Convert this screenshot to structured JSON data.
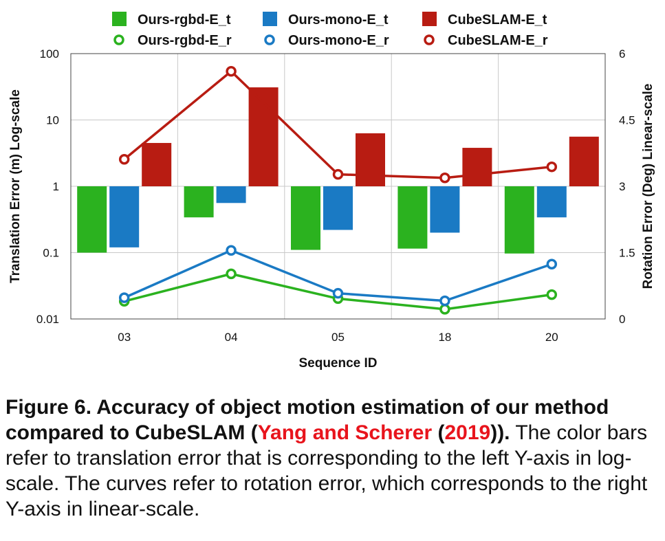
{
  "chart_data": {
    "type": "bar+line",
    "categories": [
      "03",
      "04",
      "05",
      "18",
      "20"
    ],
    "xlabel": "Sequence ID",
    "ylabel_left": "Translation Error (m) Log-scale",
    "ylabel_right": "Rotation Error (Deg) Linear-scale",
    "left_axis": {
      "scale": "log",
      "ylim": [
        0.01,
        100
      ],
      "ticks": [
        "0.01",
        "0.1",
        "1",
        "10",
        "100"
      ],
      "tick_values": [
        0.01,
        0.1,
        1,
        10,
        100
      ]
    },
    "right_axis": {
      "scale": "linear",
      "ylim": [
        0,
        6
      ],
      "ticks": [
        "0",
        "1.5",
        "3",
        "4.5",
        "6"
      ],
      "tick_values": [
        0,
        1.5,
        3,
        4.5,
        6
      ]
    },
    "bar_baseline": 1,
    "grid": true,
    "legend_position": "top",
    "bar_series": [
      {
        "name": "Ours-rgbd-E_t",
        "color": "#2bb21f",
        "values": [
          0.1,
          0.34,
          0.11,
          0.115,
          0.097
        ]
      },
      {
        "name": "Ours-mono-E_t",
        "color": "#1a7ac4",
        "values": [
          0.12,
          0.56,
          0.22,
          0.2,
          0.34
        ]
      },
      {
        "name": "CubeSLAM-E_t",
        "color": "#b81c12",
        "values": [
          4.5,
          31,
          6.3,
          3.8,
          5.6
        ]
      }
    ],
    "line_series": [
      {
        "name": "Ours-rgbd-E_r",
        "color": "#2bb21f",
        "values": [
          0.4,
          1.02,
          0.46,
          0.22,
          0.55
        ]
      },
      {
        "name": "Ours-mono-E_r",
        "color": "#1a7ac4",
        "values": [
          0.48,
          1.55,
          0.58,
          0.41,
          1.24
        ]
      },
      {
        "name": "CubeSLAM-E_r",
        "color": "#b81c12",
        "values": [
          3.61,
          5.6,
          3.27,
          3.19,
          3.44
        ]
      }
    ]
  },
  "caption": {
    "bold_prefix": "Figure 6.  Accuracy of object motion estimation of our method compared to CubeSLAM (",
    "cite_authors": "Yang and Scherer",
    "cite_open": " (",
    "cite_year": "2019",
    "bold_suffix": ")).",
    "body": " The color bars refer to translation error that is corresponding to the left Y-axis in log-scale. The curves refer to rotation error, which corresponds to the right Y-axis in linear-scale."
  }
}
